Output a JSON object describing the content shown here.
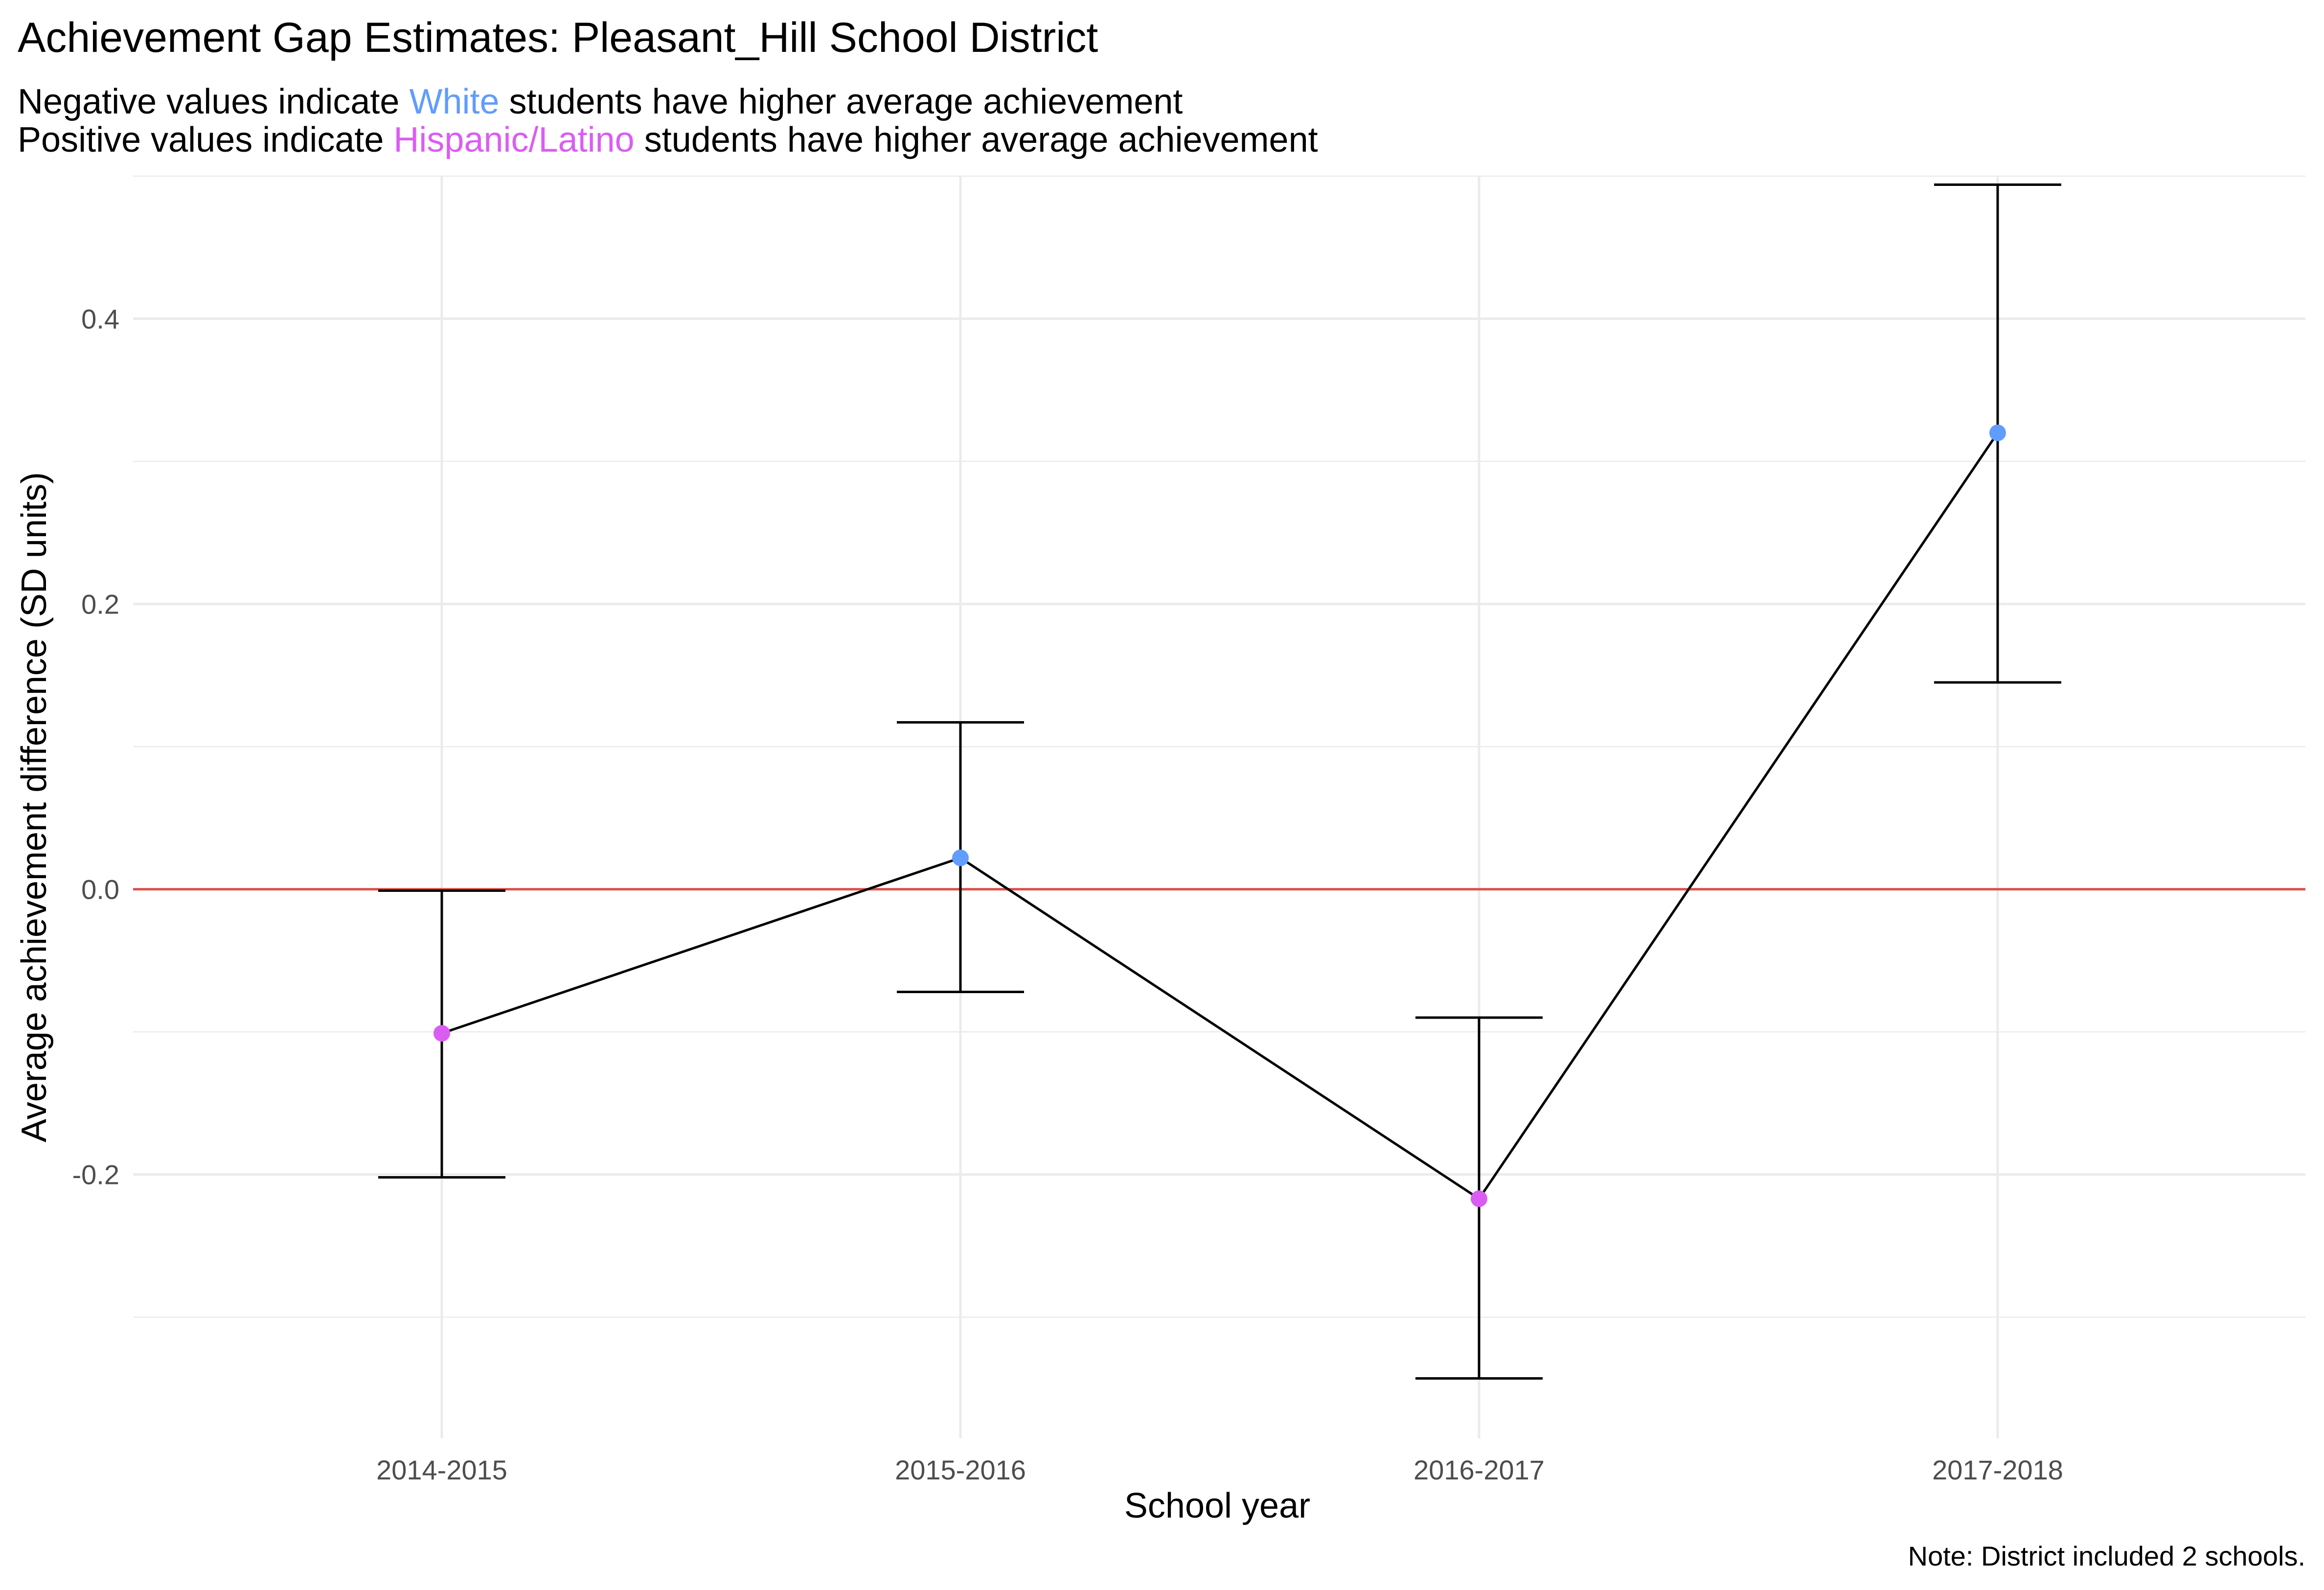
{
  "chart_data": {
    "type": "line",
    "title": "Achievement Gap Estimates: Pleasant_Hill School District",
    "subtitle": {
      "line1": {
        "before": "Negative values indicate ",
        "highlight": "White",
        "after": " students have higher average achievement"
      },
      "line2": {
        "before": "Positive values indicate ",
        "highlight": "Hispanic/Latino",
        "after": " students have higher average achievement"
      }
    },
    "xlabel": "School year",
    "ylabel": "Average achievement difference (SD units)",
    "caption": "Note: District included 2 schools.",
    "categories": [
      "2014-2015",
      "2015-2016",
      "2016-2017",
      "2017-2018"
    ],
    "y_ticks": [
      -0.2,
      0.0,
      0.2,
      0.4
    ],
    "y_tick_labels": [
      "-0.2",
      "0.0",
      "0.2",
      "0.4"
    ],
    "ylim": [
      -0.385,
      0.5
    ],
    "reference_line": 0,
    "grid": true,
    "series": [
      {
        "values": [
          -0.101,
          0.022,
          -0.217,
          0.32
        ],
        "lower": [
          -0.202,
          -0.072,
          -0.343,
          0.145
        ],
        "upper": [
          -0.001,
          0.117,
          -0.09,
          0.494
        ]
      }
    ],
    "colors": {
      "white": "#619CFF",
      "hispanic_latino": "#DB5CF3",
      "reference_line": "#D9544D",
      "line": "#000000",
      "grid": "#EBEBEB"
    }
  }
}
